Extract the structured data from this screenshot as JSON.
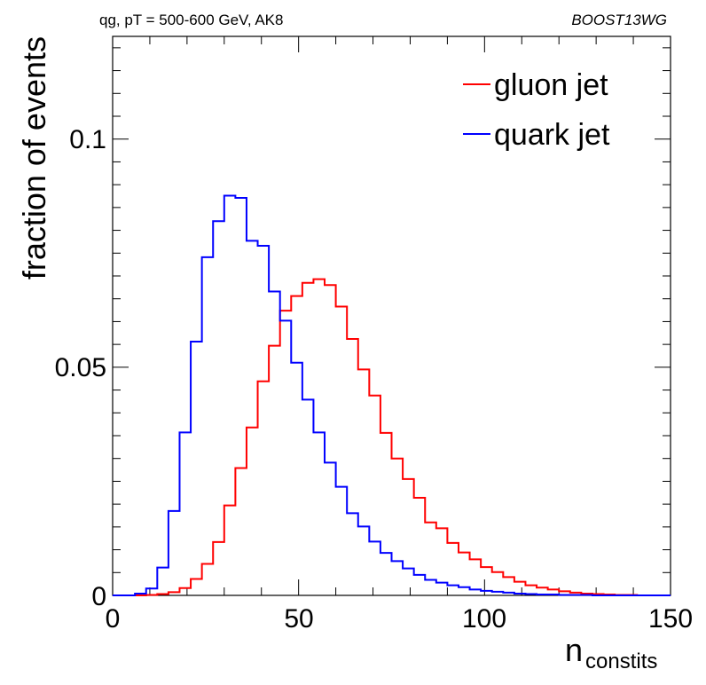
{
  "header": {
    "left_text": "qg, pT = 500-600 GeV, AK8",
    "right_text": "BOOST13WG"
  },
  "chart_data": {
    "type": "line",
    "style": "step histogram",
    "xlabel_main": "n",
    "xlabel_sub": "constits",
    "ylabel": "fraction of events",
    "xlim": [
      0,
      150
    ],
    "ylim": [
      0,
      0.1225
    ],
    "x_ticks": [
      0,
      50,
      100,
      150
    ],
    "x_tick_labels": [
      "0",
      "50",
      "100",
      "150"
    ],
    "y_ticks": [
      0,
      0.05,
      0.1
    ],
    "y_tick_labels": [
      "0",
      "0.05",
      "0.1"
    ],
    "bin_width": 3,
    "bin_edges_start": 0,
    "legend_placement": "top-right",
    "series": [
      {
        "name": "gluon jet",
        "color": "#ff0000",
        "values": [
          0,
          0,
          0,
          0.0001,
          0.0003,
          0.0007,
          0.0016,
          0.0036,
          0.0069,
          0.0117,
          0.0197,
          0.0279,
          0.0368,
          0.0469,
          0.0547,
          0.0624,
          0.0656,
          0.0685,
          0.0693,
          0.068,
          0.0633,
          0.0562,
          0.0495,
          0.0438,
          0.0356,
          0.03,
          0.0255,
          0.0214,
          0.016,
          0.0147,
          0.0115,
          0.0094,
          0.0079,
          0.0062,
          0.0051,
          0.004,
          0.003,
          0.0022,
          0.0017,
          0.0013,
          0.0009,
          0.0006,
          0.0004,
          0.0003,
          0.0002,
          0.0001,
          0.0001,
          0,
          0,
          0
        ]
      },
      {
        "name": "quark jet",
        "color": "#0000ff",
        "values": [
          0,
          0,
          0.0004,
          0.0015,
          0.0061,
          0.0185,
          0.0357,
          0.0556,
          0.0741,
          0.082,
          0.0876,
          0.0871,
          0.0777,
          0.0766,
          0.0666,
          0.0602,
          0.051,
          0.0429,
          0.0357,
          0.0291,
          0.0238,
          0.018,
          0.0151,
          0.0118,
          0.0093,
          0.0075,
          0.0059,
          0.0045,
          0.0034,
          0.0028,
          0.0022,
          0.0018,
          0.0013,
          0.001,
          0.0008,
          0.0006,
          0.0004,
          0.0003,
          0.0002,
          0.0002,
          0.0001,
          0.0001,
          0.0001,
          0,
          0,
          0,
          0,
          0,
          0,
          0
        ]
      }
    ]
  }
}
